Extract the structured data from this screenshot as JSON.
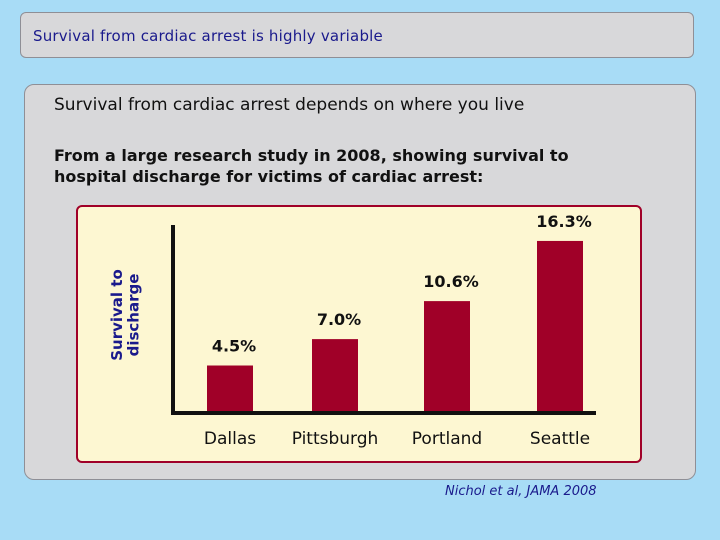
{
  "slide": {
    "title": "Survival from cardiac arrest is highly variable",
    "heading": "Survival from cardiac arrest depends on where you live",
    "subheading": "From a large research study in 2008, showing survival to hospital discharge for victims of cardiac arrest:",
    "citation": "Nichol et al, JAMA 2008"
  },
  "chart_data": {
    "type": "bar",
    "title": "",
    "xlabel": "",
    "ylabel": "Survival to discharge",
    "categories": [
      "Dallas",
      "Pittsburgh",
      "Portland",
      "Seattle"
    ],
    "values": [
      4.5,
      7.0,
      10.6,
      16.3
    ],
    "value_labels": [
      "4.5%",
      "7.0%",
      "10.6%",
      "16.3%"
    ],
    "ylim": [
      0,
      18
    ],
    "grid": false,
    "bar_color": "#a00028"
  }
}
